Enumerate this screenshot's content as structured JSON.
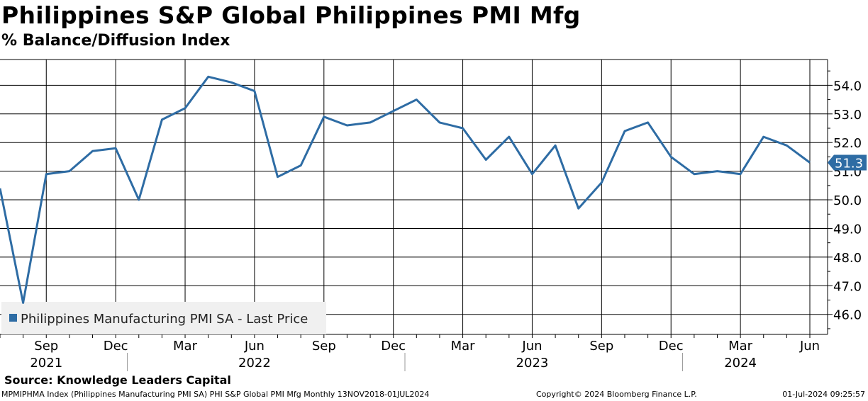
{
  "header": {
    "title": "Philippines S&P Global Philippines PMI Mfg",
    "subtitle": "% Balance/Diffusion Index"
  },
  "footer": {
    "source": "Source: Knowledge Leaders Capital",
    "description": "MPMIPHMA Index (Philippines Manufacturing PMI SA) PHI S&P Global PMI Mfg  Monthly 13NOV2018-01JUL2024",
    "copyright": "Copyright© 2024 Bloomberg Finance L.P.",
    "timestamp": "01-Jul-2024 09:25:57"
  },
  "colors": {
    "series": "#2e6ca4",
    "grid": "#000000",
    "legend_bg": "#f0f0f0"
  },
  "chart_data": {
    "type": "line",
    "ylim": [
      45.3,
      54.9
    ],
    "yticks": [
      46.0,
      47.0,
      48.0,
      49.0,
      50.0,
      51.0,
      52.0,
      53.0,
      54.0
    ],
    "ytick_labels": [
      "46.0",
      "47.0",
      "48.0",
      "49.0",
      "50.0",
      "51.0",
      "52.0",
      "53.0",
      "54.0"
    ],
    "x": [
      "2021-07",
      "2021-08",
      "2021-09",
      "2021-10",
      "2021-11",
      "2021-12",
      "2022-01",
      "2022-02",
      "2022-03",
      "2022-04",
      "2022-05",
      "2022-06",
      "2022-07",
      "2022-08",
      "2022-09",
      "2022-10",
      "2022-11",
      "2022-12",
      "2023-01",
      "2023-02",
      "2023-03",
      "2023-04",
      "2023-05",
      "2023-06",
      "2023-07",
      "2023-08",
      "2023-09",
      "2023-10",
      "2023-11",
      "2023-12",
      "2024-01",
      "2024-02",
      "2024-03",
      "2024-04",
      "2024-05",
      "2024-06"
    ],
    "xlim": [
      "2021-07",
      "2024-06"
    ],
    "month_ticks": [
      {
        "month": "2021-09",
        "label": "Sep"
      },
      {
        "month": "2021-12",
        "label": "Dec"
      },
      {
        "month": "2022-03",
        "label": "Mar"
      },
      {
        "month": "2022-06",
        "label": "Jun"
      },
      {
        "month": "2022-09",
        "label": "Sep"
      },
      {
        "month": "2022-12",
        "label": "Dec"
      },
      {
        "month": "2023-03",
        "label": "Mar"
      },
      {
        "month": "2023-06",
        "label": "Jun"
      },
      {
        "month": "2023-09",
        "label": "Sep"
      },
      {
        "month": "2023-12",
        "label": "Dec"
      },
      {
        "month": "2024-03",
        "label": "Mar"
      },
      {
        "month": "2024-06",
        "label": "Jun"
      }
    ],
    "years": [
      {
        "label": "2021",
        "center": "2021-09",
        "separator_after": "2021-12"
      },
      {
        "label": "2022",
        "center": "2022-06",
        "separator_after": "2022-12"
      },
      {
        "label": "2023",
        "center": "2023-06",
        "separator_after": "2023-12"
      },
      {
        "label": "2024",
        "center": "2024-03"
      }
    ],
    "series": [
      {
        "name": "Philippines Manufacturing PMI SA - Last Price",
        "values": [
          50.4,
          46.4,
          50.9,
          51.0,
          51.7,
          51.8,
          50.0,
          52.8,
          53.2,
          54.3,
          54.1,
          53.8,
          50.8,
          51.2,
          52.9,
          52.6,
          52.7,
          53.1,
          53.5,
          52.7,
          52.5,
          51.4,
          52.2,
          50.9,
          51.9,
          49.7,
          50.6,
          52.4,
          52.7,
          51.5,
          50.9,
          51.0,
          50.9,
          52.2,
          51.9,
          51.3
        ]
      }
    ],
    "last_value_label": "51.3",
    "grid": true,
    "legend": "bottom-left"
  }
}
